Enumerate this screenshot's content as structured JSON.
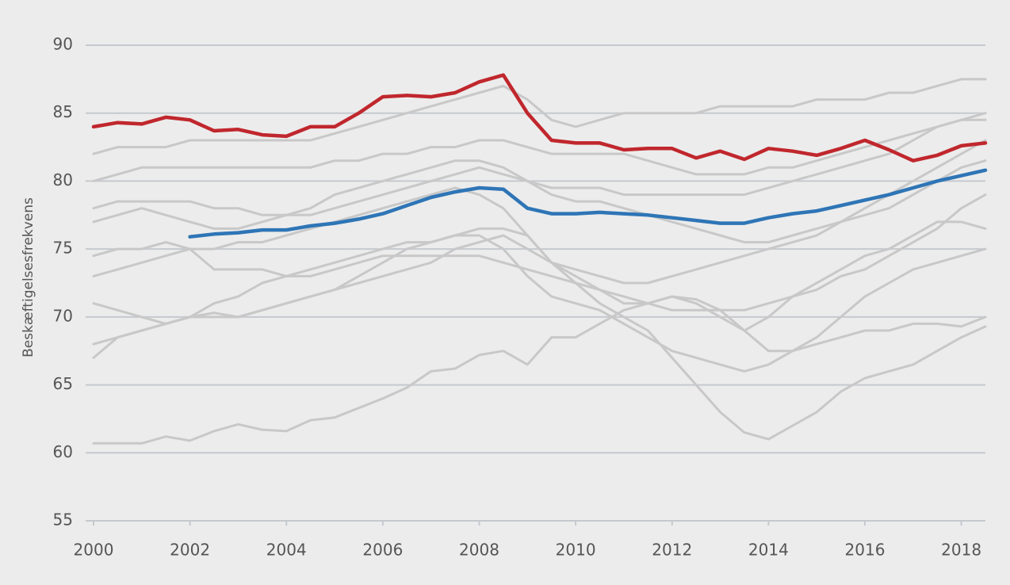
{
  "chart_data": {
    "type": "line",
    "y_label": "Beskæftigelsesfrekvens",
    "x": [
      2000,
      2000.5,
      2001,
      2001.5,
      2002,
      2002.5,
      2003,
      2003.5,
      2004,
      2004.5,
      2005,
      2005.5,
      2006,
      2006.5,
      2007,
      2007.5,
      2008,
      2008.5,
      2009,
      2009.5,
      2010,
      2010.5,
      2011,
      2011.5,
      2012,
      2012.5,
      2013,
      2013.5,
      2014,
      2014.5,
      2015,
      2015.5,
      2016,
      2016.5,
      2017,
      2017.5,
      2018,
      2018.5
    ],
    "xlim": [
      2000,
      2018.5
    ],
    "xticks": [
      2000,
      2002,
      2004,
      2006,
      2008,
      2010,
      2012,
      2014,
      2016,
      2018
    ],
    "ylim": [
      55,
      90
    ],
    "yticks": [
      55,
      60,
      65,
      70,
      75,
      80,
      85,
      90
    ],
    "grid": true,
    "series": [
      {
        "color": "#c8c8c8",
        "values": [
          60.7,
          60.7,
          60.7,
          61.2,
          60.9,
          61.6,
          62.1,
          61.7,
          61.6,
          62.4,
          62.6,
          63.3,
          64,
          64.8,
          66,
          66.2,
          67.2,
          67.5,
          66.5,
          68.5,
          68.5,
          69.5,
          70.5,
          71,
          71.5,
          71.3,
          70.5,
          69,
          67.5,
          67.5,
          68,
          68.5,
          69,
          69,
          69.5,
          69.5,
          69.3,
          70
        ]
      },
      {
        "color": "#c8c8c8",
        "values": [
          71,
          70.5,
          70,
          69.5,
          70,
          70.3,
          70,
          70.5,
          71,
          71.5,
          72,
          73,
          74,
          75,
          75.5,
          76,
          76.5,
          76.5,
          76,
          74,
          72.5,
          71,
          70,
          69,
          67,
          65,
          63,
          61.5,
          61,
          62,
          63,
          64.5,
          65.5,
          66,
          66.5,
          67.5,
          68.5,
          69.3
        ]
      },
      {
        "color": "#c8c8c8",
        "values": [
          67,
          68.5,
          69,
          69.5,
          70,
          71,
          71.5,
          72.5,
          73,
          73.5,
          74,
          74.5,
          75,
          75.5,
          75.5,
          76,
          76,
          75,
          73,
          71.5,
          71,
          70.5,
          69.5,
          68.5,
          67.5,
          67,
          66.5,
          66,
          66.5,
          67.5,
          68.5,
          70,
          71.5,
          72.5,
          73.5,
          74,
          74.5,
          75
        ]
      },
      {
        "color": "#c8c8c8",
        "values": [
          73,
          73.5,
          74,
          74.5,
          75,
          75,
          75.5,
          75.5,
          76,
          76.5,
          77,
          77.5,
          78,
          78.5,
          79,
          79.5,
          79,
          78,
          76,
          74,
          73,
          72,
          71,
          71,
          71.5,
          71,
          70,
          69,
          70,
          71.5,
          72.5,
          73.5,
          74.5,
          75,
          76,
          77,
          77,
          76.5
        ]
      },
      {
        "color": "#c8c8c8",
        "values": [
          77,
          77.5,
          78,
          77.5,
          77,
          76.5,
          76.5,
          77,
          77.5,
          78,
          79,
          79.5,
          80,
          80.5,
          81,
          81.5,
          81.5,
          81,
          80,
          79,
          78.5,
          78.5,
          78,
          77.5,
          77,
          76.5,
          76,
          75.5,
          75.5,
          76,
          76.5,
          77,
          77.5,
          78,
          79,
          80,
          81,
          81.5
        ]
      },
      {
        "color": "#c8c8c8",
        "values": [
          80,
          80.5,
          81,
          81,
          81,
          81,
          81,
          81,
          81,
          81,
          81.5,
          81.5,
          82,
          82,
          82.5,
          82.5,
          83,
          83,
          82.5,
          82,
          82,
          82,
          82,
          81.5,
          81,
          80.5,
          80.5,
          80.5,
          81,
          81,
          81.5,
          82,
          82.5,
          83,
          83.5,
          84,
          84.5,
          84.5
        ]
      },
      {
        "color": "#c8c8c8",
        "values": [
          82,
          82.5,
          82.5,
          82.5,
          83,
          83,
          83,
          83,
          83,
          83,
          83.5,
          84,
          84.5,
          85,
          85.5,
          86,
          86.5,
          87,
          86,
          84.5,
          84,
          84.5,
          85,
          85,
          85,
          85,
          85.5,
          85.5,
          85.5,
          85.5,
          86,
          86,
          86,
          86.5,
          86.5,
          87,
          87.5,
          87.5
        ]
      },
      {
        "color": "#c8c8c8",
        "values": [
          78,
          78.5,
          78.5,
          78.5,
          78.5,
          78,
          78,
          77.5,
          77.5,
          77.5,
          78,
          78.5,
          79,
          79.5,
          80,
          80.5,
          81,
          80.5,
          80,
          79.5,
          79.5,
          79.5,
          79,
          79,
          79,
          79,
          79,
          79,
          79.5,
          80,
          80.5,
          81,
          81.5,
          82,
          83,
          84,
          84.5,
          85
        ]
      },
      {
        "color": "#c8c8c8",
        "values": [
          74.5,
          75,
          75,
          75.5,
          75,
          73.5,
          73.5,
          73.5,
          73,
          73,
          73.5,
          74,
          74.5,
          74.5,
          74.5,
          74.5,
          74.5,
          74,
          73.5,
          73,
          72.5,
          72,
          71.5,
          71,
          70.5,
          70.5,
          70.5,
          70.5,
          71,
          71.5,
          72,
          73,
          73.5,
          74.5,
          75.5,
          76.5,
          78,
          79
        ]
      },
      {
        "color": "#c8c8c8",
        "values": [
          68,
          68.5,
          69,
          69.5,
          70,
          70,
          70,
          70.5,
          71,
          71.5,
          72,
          72.5,
          73,
          73.5,
          74,
          75,
          75.5,
          76,
          75,
          74,
          73.5,
          73,
          72.5,
          72.5,
          73,
          73.5,
          74,
          74.5,
          75,
          75.5,
          76,
          77,
          78,
          79,
          80,
          81,
          82,
          83
        ]
      },
      {
        "color": "#c0272d",
        "values": [
          84,
          84.3,
          84.2,
          84.7,
          84.5,
          83.7,
          83.8,
          83.4,
          83.3,
          84,
          84,
          85,
          86.2,
          86.3,
          86.2,
          86.5,
          87.3,
          87.8,
          85,
          83,
          82.8,
          82.8,
          82.3,
          82.4,
          82.4,
          81.7,
          82.2,
          81.6,
          82.4,
          82.2,
          81.9,
          82.4,
          83,
          82.3,
          81.5,
          81.9,
          82.6,
          82.8
        ]
      },
      {
        "color": "#2e75b6",
        "values": [
          null,
          null,
          null,
          null,
          75.9,
          76.1,
          76.2,
          76.4,
          76.4,
          76.7,
          76.9,
          77.2,
          77.6,
          78.2,
          78.8,
          79.2,
          79.5,
          79.4,
          78,
          77.6,
          77.6,
          77.7,
          77.6,
          77.5,
          77.3,
          77.1,
          76.9,
          76.9,
          77.3,
          77.6,
          77.8,
          78.2,
          78.6,
          79,
          79.5,
          80,
          80.4,
          80.8
        ]
      }
    ]
  }
}
